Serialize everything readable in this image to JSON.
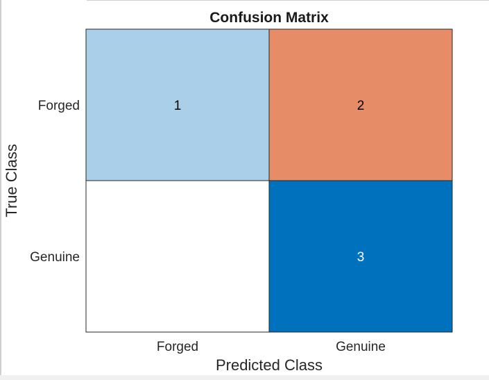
{
  "chart_data": {
    "type": "heatmap",
    "title": "Confusion Matrix",
    "xlabel": "Predicted Class",
    "ylabel": "True Class",
    "x_categories": [
      "Forged",
      "Genuine"
    ],
    "y_categories": [
      "Forged",
      "Genuine"
    ],
    "values": [
      [
        1,
        2
      ],
      [
        null,
        3
      ]
    ],
    "cell_labels": [
      [
        "1",
        "2"
      ],
      [
        "",
        "3"
      ]
    ],
    "colors": {
      "correct_scale": [
        "#ffffff",
        "#0072bd"
      ],
      "incorrect_scale": [
        "#ffffff",
        "#d95319"
      ],
      "text_dark": "#000000",
      "text_light": "#ffffff",
      "grid": "#262626"
    }
  }
}
